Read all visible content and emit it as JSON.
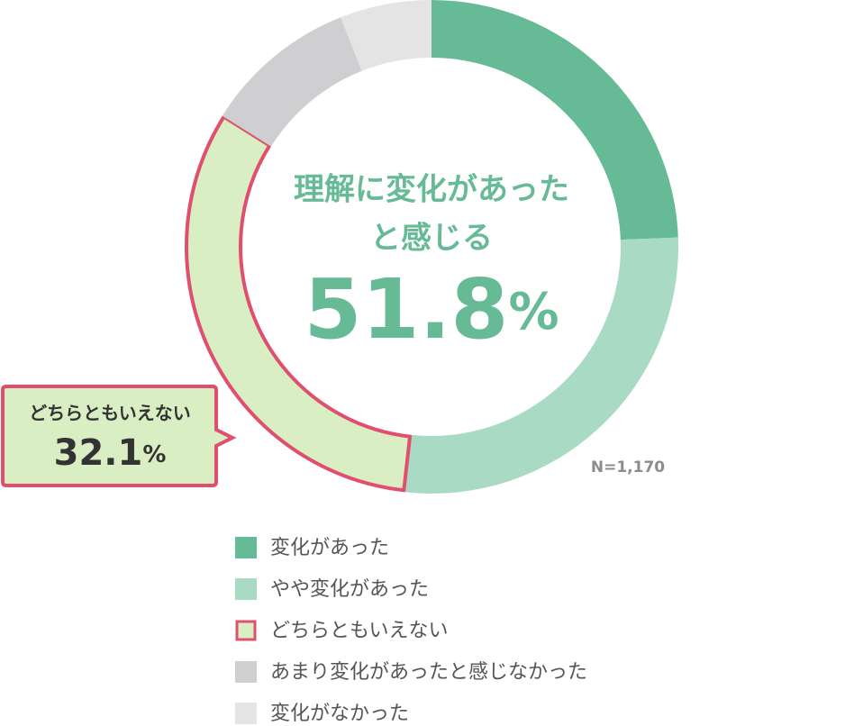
{
  "chart_data": {
    "type": "donut",
    "categories": [
      "変化があった",
      "やや変化があった",
      "どちらともいえない",
      "あまり変化があったと感じなかった",
      "変化がなかった"
    ],
    "values": [
      24.4,
      27.4,
      32.1,
      10.1,
      6.0
    ],
    "value_labels": [
      null,
      null,
      "32.1%",
      null,
      null
    ],
    "colors": [
      "#66bb96",
      "#a9dac4",
      "#daeec4",
      "#cfcfd1",
      "#e4e4e5"
    ],
    "highlight_index": 2,
    "highlight_color": "#e0506e",
    "center_text": [
      "理解に変化があった",
      "と感じる"
    ],
    "center_value": "51.8%",
    "note": "N=1,170"
  }
}
